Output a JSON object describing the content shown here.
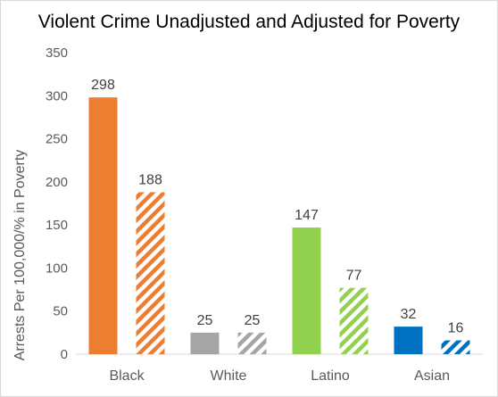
{
  "chart_data": {
    "type": "bar",
    "title": "Violent Crime Unadjusted and Adjusted for Poverty",
    "xlabel": "",
    "ylabel": "Arrests Per 100,000/% in Poverty",
    "ylim": [
      0,
      350
    ],
    "yticks": [
      0,
      50,
      100,
      150,
      200,
      250,
      300,
      350
    ],
    "ytick_labels": [
      "0",
      "50",
      "100",
      "150",
      "200",
      "250",
      "300",
      "350"
    ],
    "categories": [
      "Black",
      "White",
      "Latino",
      "Asian"
    ],
    "bars": [
      [
        {
          "value": 298,
          "label": "298",
          "color": "#ED7D31",
          "pattern": "solid"
        },
        {
          "value": 188,
          "label": "188",
          "color": "#ED7D31",
          "pattern": "hatched"
        }
      ],
      [
        {
          "value": 25,
          "label": "25",
          "color": "#A5A5A5",
          "pattern": "solid"
        },
        {
          "value": 25,
          "label": "25",
          "color": "#A5A5A5",
          "pattern": "hatched"
        }
      ],
      [
        {
          "value": 147,
          "label": "147",
          "color": "#92D050",
          "pattern": "solid"
        },
        {
          "value": 77,
          "label": "77",
          "color": "#92D050",
          "pattern": "hatched"
        }
      ],
      [
        {
          "value": 32,
          "label": "32",
          "color": "#0070C0",
          "pattern": "solid"
        },
        {
          "value": 16,
          "label": "16",
          "color": "#0070C0",
          "pattern": "hatched"
        }
      ]
    ],
    "grid": false,
    "legend": "none"
  }
}
